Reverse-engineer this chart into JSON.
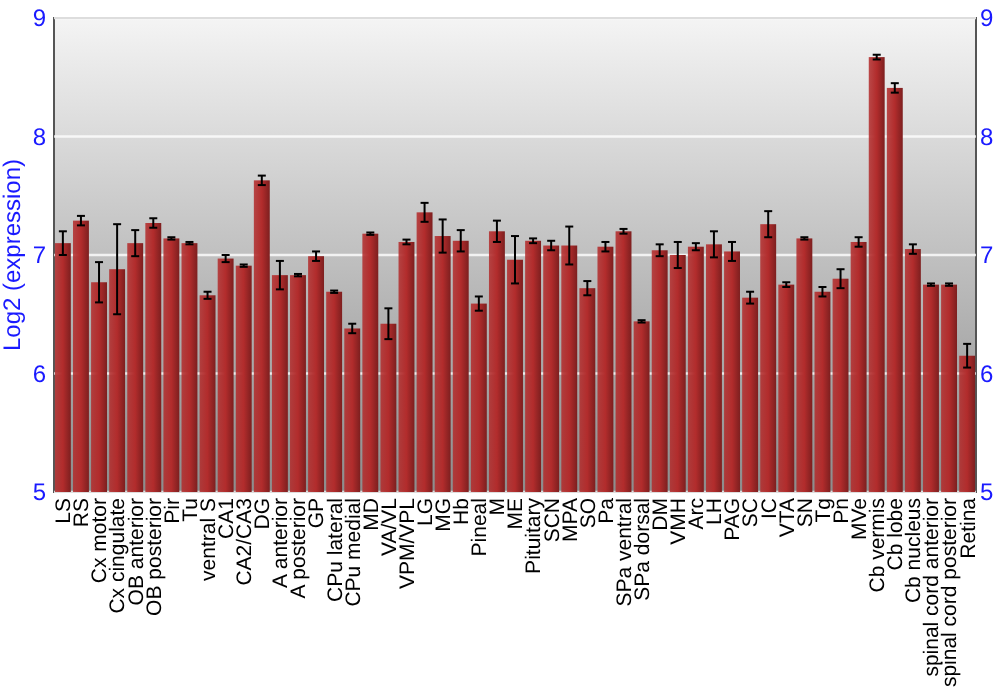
{
  "chart_data": {
    "type": "bar",
    "ylabel": "Log2 (expression)",
    "categories": [
      "LS",
      "RS",
      "Cx motor",
      "Cx cingulate",
      "OB anterior",
      "OB posterior",
      "Pir",
      "Tu",
      "ventral S",
      "CA1",
      "CA2/CA3",
      "DG",
      "A anterior",
      "A posterior",
      "GP",
      "CPu lateral",
      "CPu medial",
      "MD",
      "VA/VL",
      "VPM/VPL",
      "LG",
      "MG",
      "Hb",
      "Pineal",
      "M",
      "ME",
      "Pituitary",
      "SCN",
      "MPA",
      "SO",
      "Pa",
      "SPa ventral",
      "SPa dorsal",
      "DM",
      "VMH",
      "Arc",
      "LH",
      "PAG",
      "SC",
      "IC",
      "VTA",
      "SN",
      "Tg",
      "Pn",
      "MVe",
      "Cb vermis",
      "Cb lobe",
      "Cb nucleus",
      "spinal cord anterior",
      "spinal cord posterior",
      "Retina"
    ],
    "values": [
      7.1,
      7.29,
      6.77,
      6.88,
      7.1,
      7.27,
      7.14,
      7.1,
      6.66,
      6.97,
      6.91,
      7.63,
      6.83,
      6.83,
      6.99,
      6.69,
      6.38,
      7.18,
      6.42,
      7.11,
      7.36,
      7.16,
      7.12,
      6.59,
      7.2,
      6.96,
      7.12,
      7.08,
      7.08,
      6.72,
      7.07,
      7.2,
      6.44,
      7.04,
      7.0,
      7.07,
      7.09,
      7.03,
      6.64,
      7.26,
      6.75,
      7.14,
      6.69,
      6.8,
      7.11,
      8.67,
      8.41,
      7.05,
      6.75,
      6.75,
      6.15
    ],
    "errors": [
      0.1,
      0.04,
      0.17,
      0.38,
      0.11,
      0.04,
      0.01,
      0.01,
      0.03,
      0.03,
      0.01,
      0.04,
      0.12,
      0.01,
      0.04,
      0.01,
      0.04,
      0.01,
      0.13,
      0.02,
      0.08,
      0.14,
      0.09,
      0.06,
      0.09,
      0.2,
      0.02,
      0.04,
      0.16,
      0.06,
      0.04,
      0.02,
      0.01,
      0.05,
      0.11,
      0.03,
      0.11,
      0.08,
      0.05,
      0.11,
      0.02,
      0.01,
      0.04,
      0.08,
      0.04,
      0.02,
      0.04,
      0.04,
      0.01,
      0.01,
      0.1
    ],
    "color": "#b22c2c",
    "ylim": [
      5,
      9
    ],
    "yticks": [
      5,
      6,
      7,
      8,
      9
    ],
    "y2lim": [
      5,
      9
    ],
    "y2ticks": [
      5,
      6,
      7,
      8,
      9
    ],
    "grid": "y"
  }
}
